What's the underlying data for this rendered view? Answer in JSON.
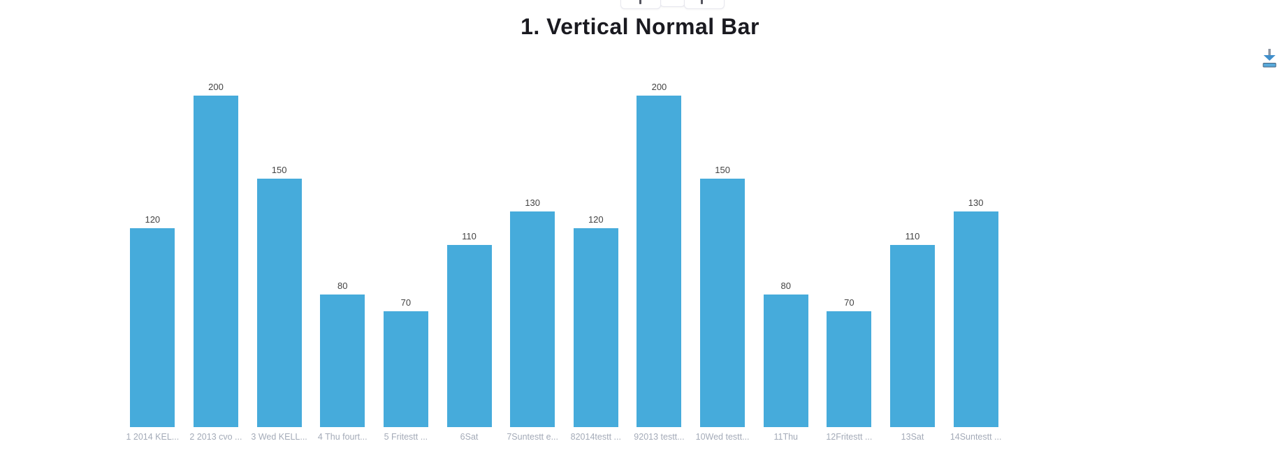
{
  "page": {
    "title": "1. Vertical Normal Bar"
  },
  "toolbar": {
    "prev_button_label": "",
    "middle_button_label": "",
    "next_button_label": ""
  },
  "colors": {
    "bar": "#46abdb",
    "value_label": "#434343",
    "category_label": "#a4abb8",
    "title": "#1a1a20",
    "button_border": "#e7e7ee",
    "download_arrow_shaft": "#8b93a0",
    "download_arrow_head": "#3f8ecb",
    "download_tray_fill": "#58a9da",
    "download_tray_stroke": "#47637e"
  },
  "chart_data": {
    "type": "bar",
    "orientation": "vertical",
    "title": "1. Vertical Normal Bar",
    "categories": [
      "1 2014 KEL...",
      "2 2013 cvo ...",
      "3 Wed KELL...",
      "4 Thu fourt...",
      "5 Fritestt ...",
      "6Sat",
      "7Suntestt e...",
      "82014testt ...",
      "92013 testt...",
      "10Wed testt...",
      "11Thu",
      "12Fritestt ...",
      "13Sat",
      "14Suntestt ..."
    ],
    "values": [
      120,
      200,
      150,
      80,
      70,
      110,
      130,
      120,
      200,
      150,
      80,
      70,
      110,
      130
    ],
    "xlabel": "",
    "ylabel": "",
    "ylim": [
      0,
      200
    ],
    "grid": false,
    "legend": "none",
    "value_labels": true
  }
}
